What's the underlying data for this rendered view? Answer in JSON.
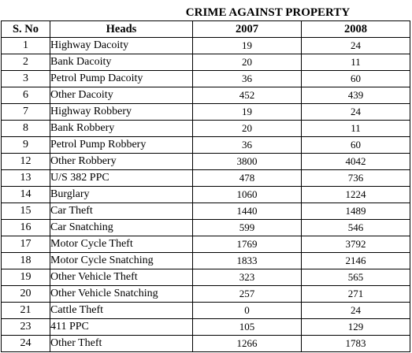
{
  "title": "CRIME AGAINST PROPERTY",
  "headers": {
    "sno": "S. No",
    "heads": "Heads",
    "year1": "2007",
    "year2": "2008"
  },
  "rows": [
    {
      "sno": "1",
      "head": "Highway Dacoity",
      "y2007": "19",
      "y2008": "24"
    },
    {
      "sno": "2",
      "head": "Bank Dacoity",
      "y2007": "20",
      "y2008": "11"
    },
    {
      "sno": "3",
      "head": "Petrol Pump Dacoity",
      "y2007": "36",
      "y2008": "60"
    },
    {
      "sno": "6",
      "head": "Other Dacoity",
      "y2007": "452",
      "y2008": "439"
    },
    {
      "sno": "7",
      "head": "Highway Robbery",
      "y2007": "19",
      "y2008": "24"
    },
    {
      "sno": "8",
      "head": "Bank Robbery",
      "y2007": "20",
      "y2008": "11"
    },
    {
      "sno": "9",
      "head": "Petrol Pump Robbery",
      "y2007": "36",
      "y2008": "60"
    },
    {
      "sno": "12",
      "head": "Other Robbery",
      "y2007": "3800",
      "y2008": "4042"
    },
    {
      "sno": "13",
      "head": "U/S 382 PPC",
      "y2007": "478",
      "y2008": "736"
    },
    {
      "sno": "14",
      "head": "Burglary",
      "y2007": "1060",
      "y2008": "1224"
    },
    {
      "sno": "15",
      "head": "Car Theft",
      "y2007": "1440",
      "y2008": "1489"
    },
    {
      "sno": "16",
      "head": "Car Snatching",
      "y2007": "599",
      "y2008": "546"
    },
    {
      "sno": "17",
      "head": "Motor Cycle Theft",
      "y2007": "1769",
      "y2008": "3792"
    },
    {
      "sno": "18",
      "head": "Motor Cycle Snatching",
      "y2007": "1833",
      "y2008": "2146"
    },
    {
      "sno": "19",
      "head": "Other Vehicle Theft",
      "y2007": "323",
      "y2008": "565"
    },
    {
      "sno": "20",
      "head": "Other Vehicle Snatching",
      "y2007": "257",
      "y2008": "271"
    },
    {
      "sno": "21",
      "head": "Cattle Theft",
      "y2007": "0",
      "y2008": "24"
    },
    {
      "sno": "23",
      "head": "411 PPC",
      "y2007": "105",
      "y2008": "129"
    },
    {
      "sno": "24",
      "head": "Other Theft",
      "y2007": "1266",
      "y2008": "1783"
    }
  ]
}
